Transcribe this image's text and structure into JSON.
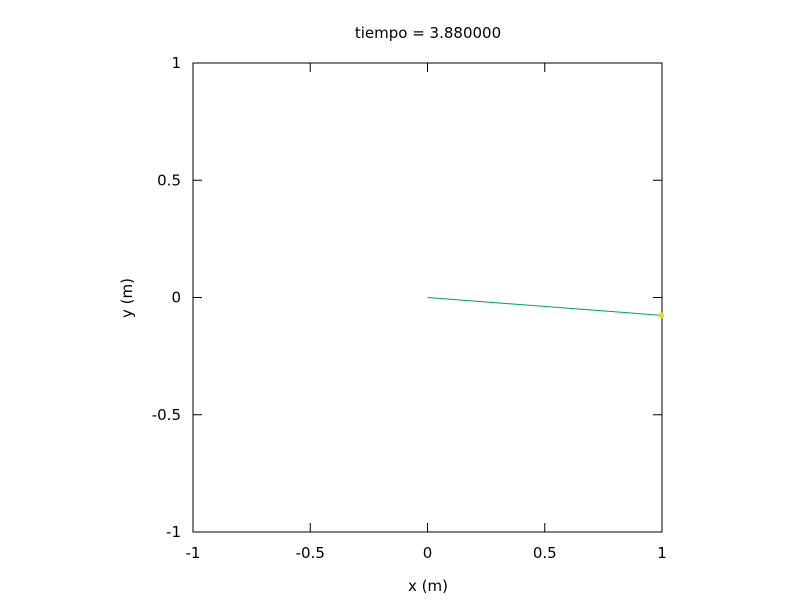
{
  "chart_data": {
    "type": "line",
    "title": "tiempo = 3.880000",
    "xlabel": "x (m)",
    "ylabel": "y (m)",
    "xlim": [
      -1,
      1
    ],
    "ylim": [
      -1,
      1
    ],
    "x_ticks": [
      {
        "value": -1,
        "label": "-1"
      },
      {
        "value": -0.5,
        "label": "-0.5"
      },
      {
        "value": 0,
        "label": "0"
      },
      {
        "value": 0.5,
        "label": "0.5"
      },
      {
        "value": 1,
        "label": "1"
      }
    ],
    "y_ticks": [
      {
        "value": -1,
        "label": "-1"
      },
      {
        "value": -0.5,
        "label": "-0.5"
      },
      {
        "value": 0,
        "label": "0"
      },
      {
        "value": 0.5,
        "label": "0.5"
      },
      {
        "value": 1,
        "label": "1"
      }
    ],
    "grid": false,
    "series": [
      {
        "kind": "line",
        "color": "#009e73",
        "points": [
          {
            "x": 0,
            "y": 0
          },
          {
            "x": 0.997,
            "y": -0.076
          }
        ]
      },
      {
        "kind": "point",
        "color": "#e5e02a",
        "points": [
          {
            "x": 0.997,
            "y": -0.076
          }
        ]
      }
    ]
  }
}
